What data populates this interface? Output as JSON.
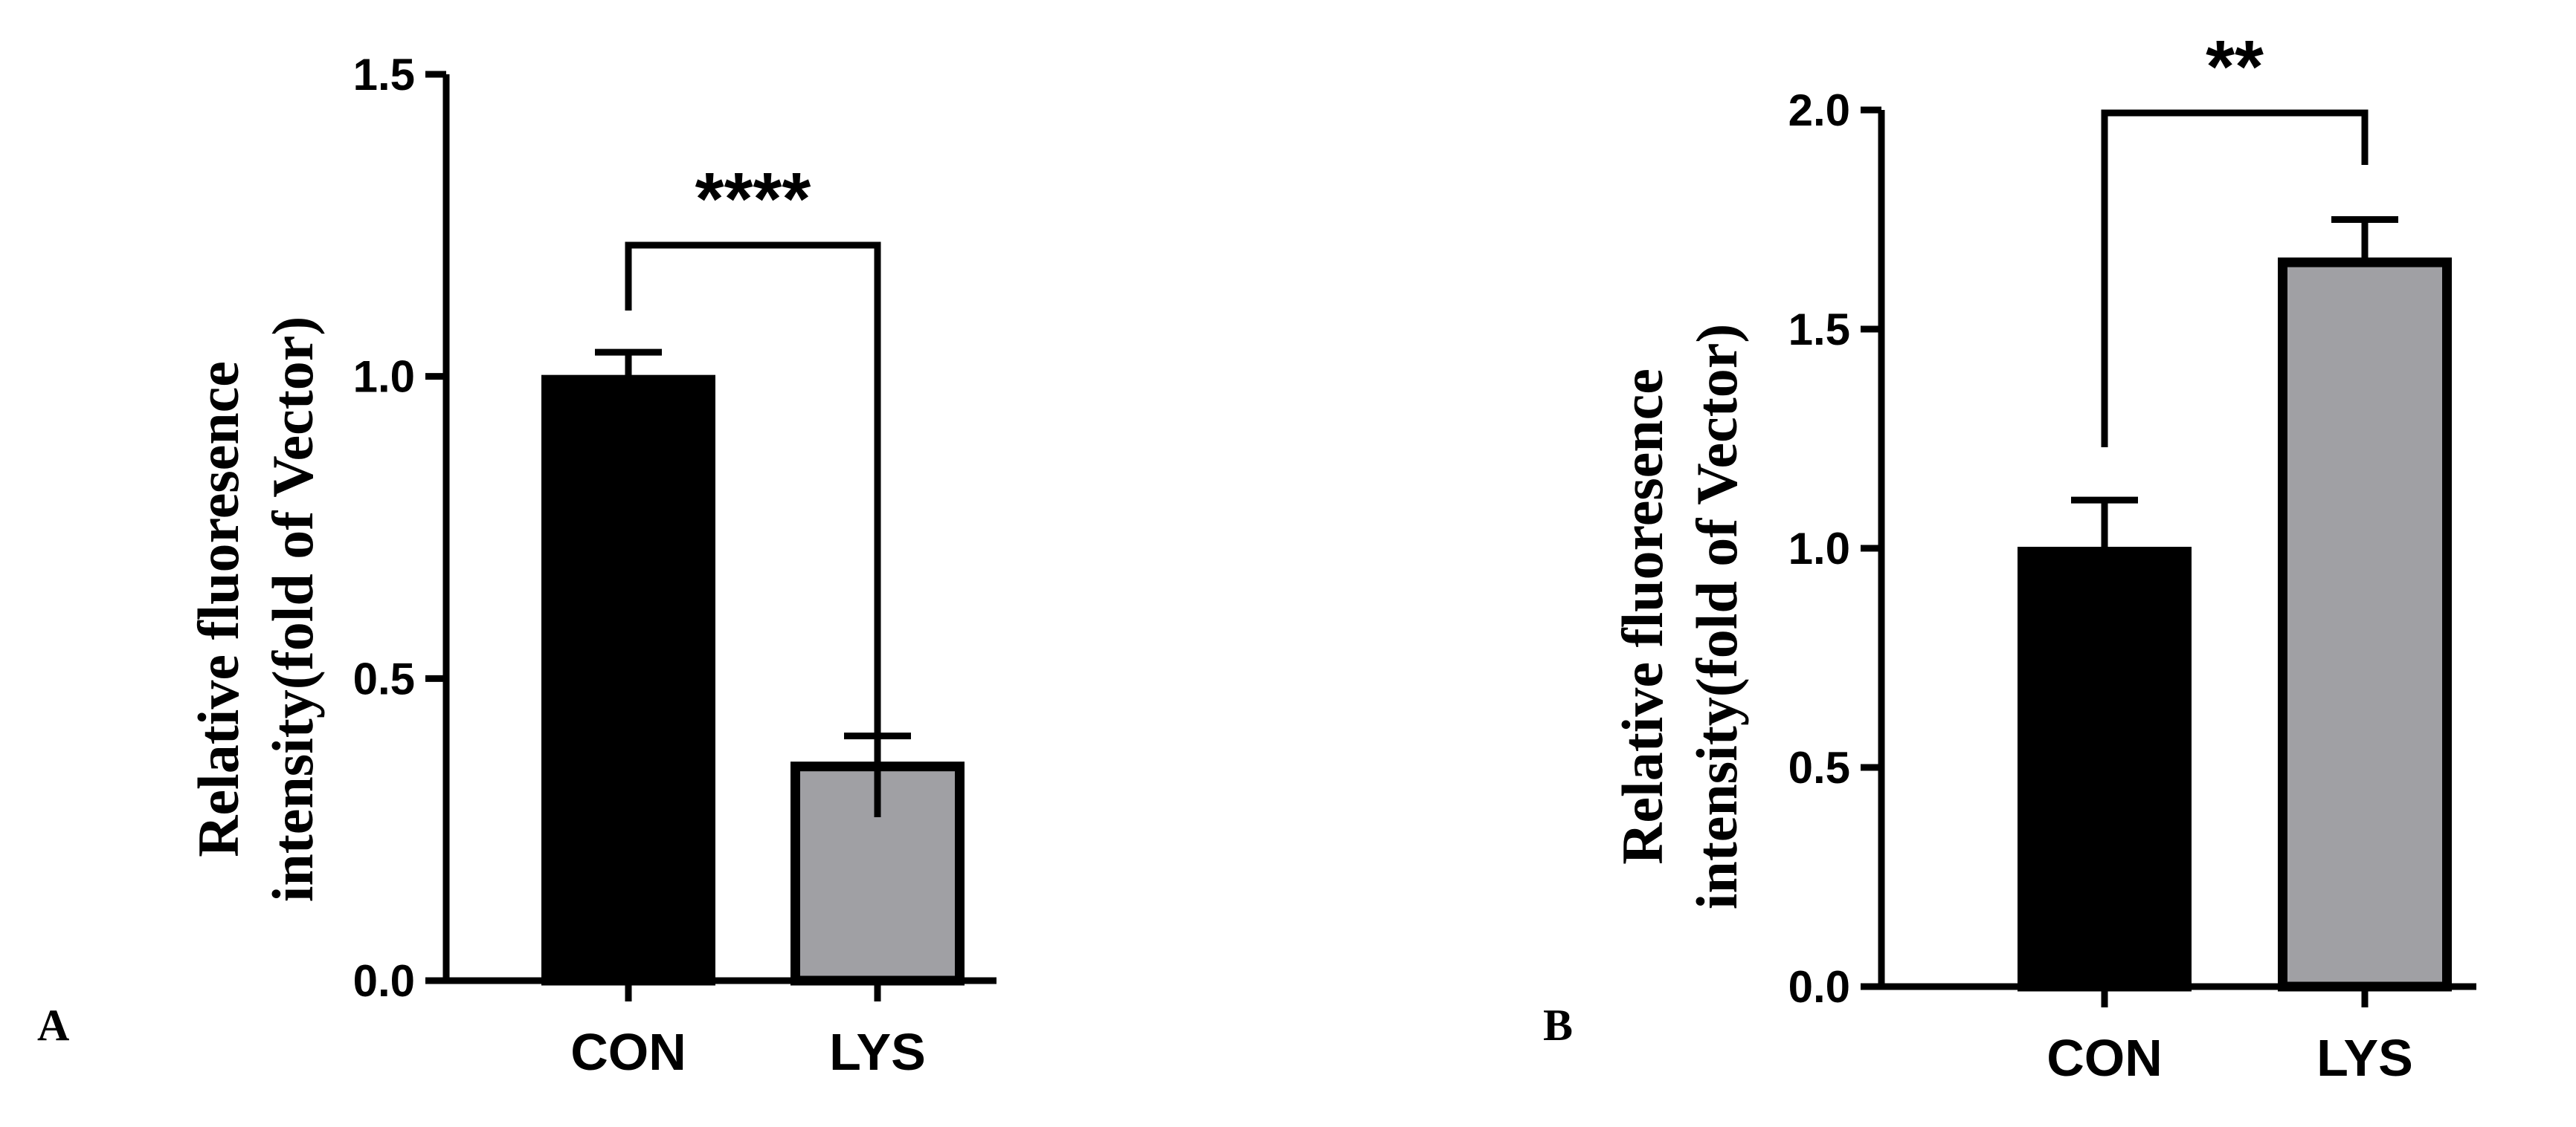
{
  "chart_data": [
    {
      "panel": "A",
      "type": "bar",
      "categories": [
        "CON",
        "LYS"
      ],
      "values": [
        1.0,
        0.36
      ],
      "errors": [
        0.04,
        0.045
      ],
      "ylabel_line1": "Relative fluoresence",
      "ylabel_line2": "intensity(fold of Vector)",
      "ylim": [
        0,
        1.5
      ],
      "yticks": [
        "0.0",
        "0.5",
        "1.0",
        "1.5"
      ],
      "significance": "****",
      "colors": [
        "#000000",
        "#a0a0a4"
      ]
    },
    {
      "panel": "B",
      "type": "bar",
      "categories": [
        "CON",
        "LYS"
      ],
      "values": [
        1.0,
        1.66
      ],
      "errors": [
        0.11,
        0.09
      ],
      "ylabel_line1": "Relative fluoresence",
      "ylabel_line2": "intensity(fold of Vector)",
      "ylim": [
        0,
        2.0
      ],
      "yticks": [
        "0.0",
        "0.5",
        "1.0",
        "1.5",
        "2.0"
      ],
      "significance": "**",
      "colors": [
        "#000000",
        "#a0a0a4"
      ]
    }
  ]
}
